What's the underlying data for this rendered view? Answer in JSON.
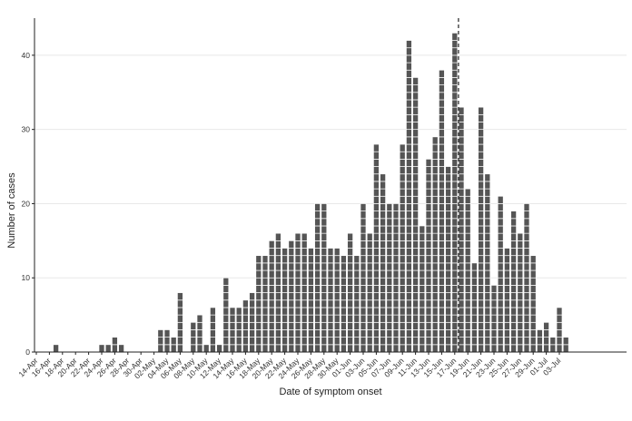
{
  "chart_data": {
    "type": "bar",
    "style": "stacked-unit-squares",
    "title": "",
    "xlabel": "Date of symptom onset",
    "ylabel": "Number of cases",
    "ylim": [
      0,
      45
    ],
    "yticks": [
      0,
      10,
      20,
      30,
      40
    ],
    "grid": "horizontal",
    "legend": "none",
    "colors": {
      "bar": "#555555",
      "edge": "#ffffff",
      "axis": "#222222",
      "grid": "#e8e8e8",
      "vline": "#222222"
    },
    "start_date": "14-Apr",
    "xtick_labels": [
      "14-Apr",
      "16-Apr",
      "18-Apr",
      "20-Apr",
      "22-Apr",
      "24-Apr",
      "26-Apr",
      "28-Apr",
      "30-Apr",
      "02-May",
      "04-May",
      "06-May",
      "08-May",
      "10-May",
      "12-May",
      "14-May",
      "16-May",
      "18-May",
      "20-May",
      "22-May",
      "24-May",
      "26-May",
      "28-May",
      "30-May",
      "01-Jun",
      "03-Jun",
      "05-Jun",
      "07-Jun",
      "09-Jun",
      "11-Jun",
      "13-Jun",
      "15-Jun",
      "17-Jun",
      "19-Jun",
      "21-Jun",
      "23-Jun",
      "25-Jun",
      "27-Jun",
      "29-Jun",
      "01-Jul",
      "03-Jul"
    ],
    "reference_line": "18-Jun",
    "values": [
      0,
      0,
      0,
      1,
      0,
      0,
      0,
      0,
      0,
      0,
      1,
      1,
      2,
      1,
      0,
      0,
      0,
      0,
      0,
      3,
      3,
      2,
      8,
      0,
      4,
      5,
      1,
      6,
      1,
      10,
      6,
      6,
      7,
      8,
      13,
      13,
      15,
      16,
      14,
      15,
      16,
      16,
      14,
      20,
      20,
      14,
      14,
      13,
      16,
      13,
      20,
      16,
      28,
      24,
      20,
      20,
      28,
      42,
      37,
      17,
      26,
      29,
      38,
      25,
      43,
      33,
      22,
      12,
      33,
      24,
      9,
      21,
      14,
      19,
      16,
      20,
      13,
      3,
      4,
      2,
      6,
      2,
      0,
      0,
      0,
      0,
      0,
      0,
      0,
      0,
      0
    ]
  }
}
